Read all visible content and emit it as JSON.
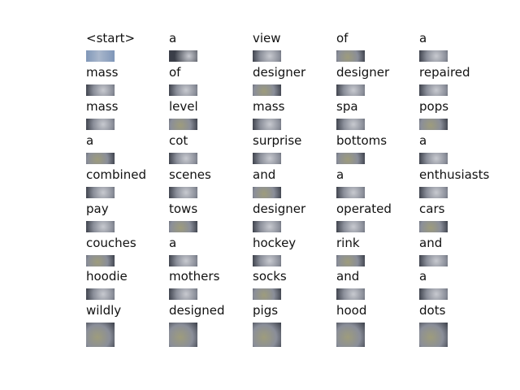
{
  "words": [
    [
      "<start>",
      "a",
      "view",
      "of",
      "a"
    ],
    [
      "mass",
      "of",
      "designer",
      "designer",
      "repaired"
    ],
    [
      "mass",
      "level",
      "mass",
      "spa",
      "pops"
    ],
    [
      "a",
      "cot",
      "surprise",
      "bottoms",
      "a"
    ],
    [
      "combined",
      "scenes",
      "and",
      "a",
      "enthusiasts"
    ],
    [
      "pay",
      "tows",
      "designer",
      "operated",
      "cars"
    ],
    [
      "couches",
      "a",
      "hockey",
      "rink",
      "and"
    ],
    [
      "hoodie",
      "mothers",
      "socks",
      "and",
      "a"
    ],
    [
      "wildly",
      "designed",
      "pigs",
      "hood",
      "dots"
    ]
  ],
  "colors": {
    "background": "#ffffff",
    "text": "#111111",
    "thumb_gray": "#8a8e99",
    "thumb_light": "#c8cad0",
    "thumb_dark": "#3a3e48",
    "thumb_blue": "#7f96b8",
    "thumb_olive": "#9e9c7c"
  }
}
